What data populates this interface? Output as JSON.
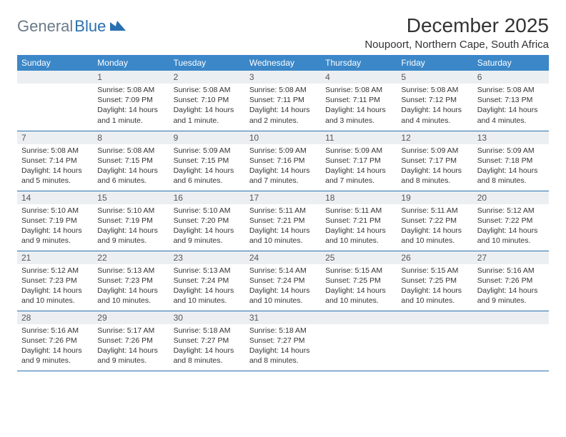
{
  "logo": {
    "gray": "General",
    "blue": "Blue"
  },
  "title": "December 2025",
  "location": "Noupoort, Northern Cape, South Africa",
  "colors": {
    "header_bg": "#3b87c8",
    "header_text": "#ffffff",
    "daynum_bg": "#eceff1",
    "border": "#2a6fb0",
    "logo_gray": "#6b7a89",
    "logo_blue": "#2a6fb0"
  },
  "weekdays": [
    "Sunday",
    "Monday",
    "Tuesday",
    "Wednesday",
    "Thursday",
    "Friday",
    "Saturday"
  ],
  "weeks": [
    [
      null,
      {
        "n": "1",
        "sr": "Sunrise: 5:08 AM",
        "ss": "Sunset: 7:09 PM",
        "d1": "Daylight: 14 hours",
        "d2": "and 1 minute."
      },
      {
        "n": "2",
        "sr": "Sunrise: 5:08 AM",
        "ss": "Sunset: 7:10 PM",
        "d1": "Daylight: 14 hours",
        "d2": "and 1 minute."
      },
      {
        "n": "3",
        "sr": "Sunrise: 5:08 AM",
        "ss": "Sunset: 7:11 PM",
        "d1": "Daylight: 14 hours",
        "d2": "and 2 minutes."
      },
      {
        "n": "4",
        "sr": "Sunrise: 5:08 AM",
        "ss": "Sunset: 7:11 PM",
        "d1": "Daylight: 14 hours",
        "d2": "and 3 minutes."
      },
      {
        "n": "5",
        "sr": "Sunrise: 5:08 AM",
        "ss": "Sunset: 7:12 PM",
        "d1": "Daylight: 14 hours",
        "d2": "and 4 minutes."
      },
      {
        "n": "6",
        "sr": "Sunrise: 5:08 AM",
        "ss": "Sunset: 7:13 PM",
        "d1": "Daylight: 14 hours",
        "d2": "and 4 minutes."
      }
    ],
    [
      {
        "n": "7",
        "sr": "Sunrise: 5:08 AM",
        "ss": "Sunset: 7:14 PM",
        "d1": "Daylight: 14 hours",
        "d2": "and 5 minutes."
      },
      {
        "n": "8",
        "sr": "Sunrise: 5:08 AM",
        "ss": "Sunset: 7:15 PM",
        "d1": "Daylight: 14 hours",
        "d2": "and 6 minutes."
      },
      {
        "n": "9",
        "sr": "Sunrise: 5:09 AM",
        "ss": "Sunset: 7:15 PM",
        "d1": "Daylight: 14 hours",
        "d2": "and 6 minutes."
      },
      {
        "n": "10",
        "sr": "Sunrise: 5:09 AM",
        "ss": "Sunset: 7:16 PM",
        "d1": "Daylight: 14 hours",
        "d2": "and 7 minutes."
      },
      {
        "n": "11",
        "sr": "Sunrise: 5:09 AM",
        "ss": "Sunset: 7:17 PM",
        "d1": "Daylight: 14 hours",
        "d2": "and 7 minutes."
      },
      {
        "n": "12",
        "sr": "Sunrise: 5:09 AM",
        "ss": "Sunset: 7:17 PM",
        "d1": "Daylight: 14 hours",
        "d2": "and 8 minutes."
      },
      {
        "n": "13",
        "sr": "Sunrise: 5:09 AM",
        "ss": "Sunset: 7:18 PM",
        "d1": "Daylight: 14 hours",
        "d2": "and 8 minutes."
      }
    ],
    [
      {
        "n": "14",
        "sr": "Sunrise: 5:10 AM",
        "ss": "Sunset: 7:19 PM",
        "d1": "Daylight: 14 hours",
        "d2": "and 9 minutes."
      },
      {
        "n": "15",
        "sr": "Sunrise: 5:10 AM",
        "ss": "Sunset: 7:19 PM",
        "d1": "Daylight: 14 hours",
        "d2": "and 9 minutes."
      },
      {
        "n": "16",
        "sr": "Sunrise: 5:10 AM",
        "ss": "Sunset: 7:20 PM",
        "d1": "Daylight: 14 hours",
        "d2": "and 9 minutes."
      },
      {
        "n": "17",
        "sr": "Sunrise: 5:11 AM",
        "ss": "Sunset: 7:21 PM",
        "d1": "Daylight: 14 hours",
        "d2": "and 10 minutes."
      },
      {
        "n": "18",
        "sr": "Sunrise: 5:11 AM",
        "ss": "Sunset: 7:21 PM",
        "d1": "Daylight: 14 hours",
        "d2": "and 10 minutes."
      },
      {
        "n": "19",
        "sr": "Sunrise: 5:11 AM",
        "ss": "Sunset: 7:22 PM",
        "d1": "Daylight: 14 hours",
        "d2": "and 10 minutes."
      },
      {
        "n": "20",
        "sr": "Sunrise: 5:12 AM",
        "ss": "Sunset: 7:22 PM",
        "d1": "Daylight: 14 hours",
        "d2": "and 10 minutes."
      }
    ],
    [
      {
        "n": "21",
        "sr": "Sunrise: 5:12 AM",
        "ss": "Sunset: 7:23 PM",
        "d1": "Daylight: 14 hours",
        "d2": "and 10 minutes."
      },
      {
        "n": "22",
        "sr": "Sunrise: 5:13 AM",
        "ss": "Sunset: 7:23 PM",
        "d1": "Daylight: 14 hours",
        "d2": "and 10 minutes."
      },
      {
        "n": "23",
        "sr": "Sunrise: 5:13 AM",
        "ss": "Sunset: 7:24 PM",
        "d1": "Daylight: 14 hours",
        "d2": "and 10 minutes."
      },
      {
        "n": "24",
        "sr": "Sunrise: 5:14 AM",
        "ss": "Sunset: 7:24 PM",
        "d1": "Daylight: 14 hours",
        "d2": "and 10 minutes."
      },
      {
        "n": "25",
        "sr": "Sunrise: 5:15 AM",
        "ss": "Sunset: 7:25 PM",
        "d1": "Daylight: 14 hours",
        "d2": "and 10 minutes."
      },
      {
        "n": "26",
        "sr": "Sunrise: 5:15 AM",
        "ss": "Sunset: 7:25 PM",
        "d1": "Daylight: 14 hours",
        "d2": "and 10 minutes."
      },
      {
        "n": "27",
        "sr": "Sunrise: 5:16 AM",
        "ss": "Sunset: 7:26 PM",
        "d1": "Daylight: 14 hours",
        "d2": "and 9 minutes."
      }
    ],
    [
      {
        "n": "28",
        "sr": "Sunrise: 5:16 AM",
        "ss": "Sunset: 7:26 PM",
        "d1": "Daylight: 14 hours",
        "d2": "and 9 minutes."
      },
      {
        "n": "29",
        "sr": "Sunrise: 5:17 AM",
        "ss": "Sunset: 7:26 PM",
        "d1": "Daylight: 14 hours",
        "d2": "and 9 minutes."
      },
      {
        "n": "30",
        "sr": "Sunrise: 5:18 AM",
        "ss": "Sunset: 7:27 PM",
        "d1": "Daylight: 14 hours",
        "d2": "and 8 minutes."
      },
      {
        "n": "31",
        "sr": "Sunrise: 5:18 AM",
        "ss": "Sunset: 7:27 PM",
        "d1": "Daylight: 14 hours",
        "d2": "and 8 minutes."
      },
      null,
      null,
      null
    ]
  ]
}
